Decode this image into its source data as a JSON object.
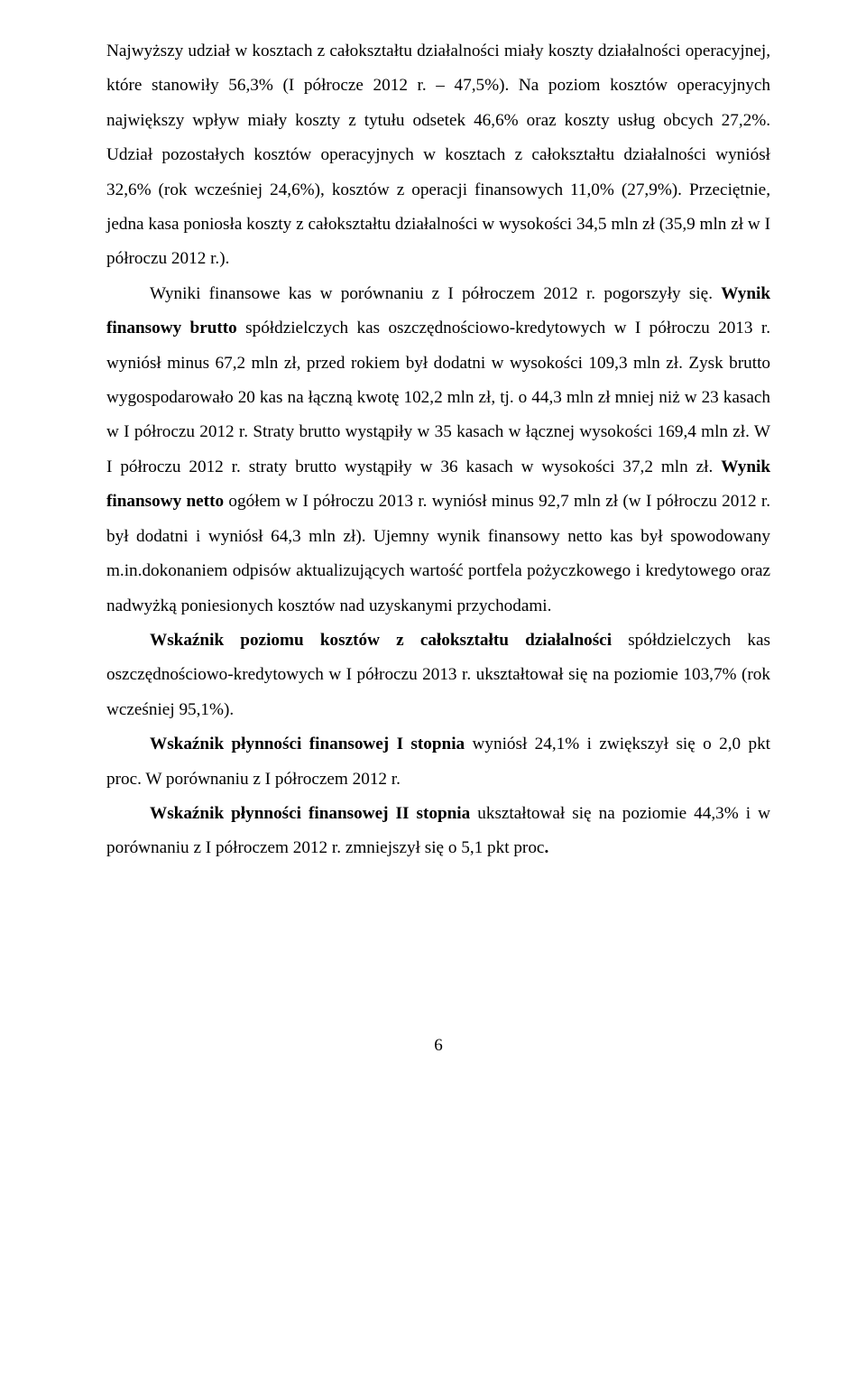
{
  "p1_a": "Najwyższy udział w kosztach z całokształtu działalności miały koszty działalności operacyjnej, które stanowiły 56,3% (I półrocze 2012 r. – 47,5%). Na poziom kosztów operacyjnych największy wpływ miały koszty z tytułu odsetek 46,6% oraz koszty usług obcych 27,2%. Udział pozostałych kosztów operacyjnych w kosztach z całokształtu działalności wyniósł 32,6% (rok wcześniej 24,6%), kosztów z operacji finansowych 11,0% (27,9%). Przeciętnie, jedna kasa poniosła koszty z całokształtu działalności w wysokości 34,5 mln zł (35,9 mln zł w I półroczu 2012 r.).",
  "p2_a": "Wyniki finansowe kas w porównaniu z I półroczem 2012 r. pogorszyły się. ",
  "p2_b": "Wynik finansowy brutto",
  "p2_c": " spółdzielczych kas oszczędnościowo-kredytowych w I półroczu 2013 r. wyniósł minus 67,2 mln zł, przed rokiem był dodatni w wysokości 109,3 mln zł. Zysk brutto wygospodarowało 20 kas na łączną kwotę 102,2 mln zł, tj. o 44,3 mln zł mniej niż w 23 kasach w I półroczu 2012 r. Straty brutto wystąpiły w 35 kasach w łącznej wysokości 169,4 mln zł. W I półroczu 2012 r. straty brutto wystąpiły w 36 kasach w wysokości 37,2 mln zł. ",
  "p2_d": "Wynik finansowy netto",
  "p2_e": " ogółem w I półroczu 2013 r. wyniósł minus 92,7 mln zł (w I półroczu 2012 r. był dodatni i wyniósł 64,3 mln zł). Ujemny wynik finansowy netto kas był spowodowany m.in.dokonaniem odpisów aktualizujących wartość portfela pożyczkowego i kredytowego oraz nadwyżką poniesionych kosztów nad uzyskanymi przychodami.",
  "p3_a": "Wskaźnik poziomu kosztów z całokształtu działalności",
  "p3_b": " spółdzielczych kas oszczędnościowo-kredytowych w I półroczu 2013 r. ukształtował się na poziomie 103,7% (rok wcześniej 95,1%).",
  "p4_a": "Wskaźnik płynności finansowej I stopnia",
  "p4_b": " wyniósł 24,1% i zwiększył się o 2,0 pkt proc. W porównaniu z I półroczem 2012 r.",
  "p5_a": "Wskaźnik płynności finansowej II stopnia",
  "p5_b": " ukształtował się na poziomie 44,3% i w porównaniu z I półroczem 2012 r. zmniejszył się o 5,1 pkt proc",
  "p5_c": ".",
  "page_number": "6"
}
